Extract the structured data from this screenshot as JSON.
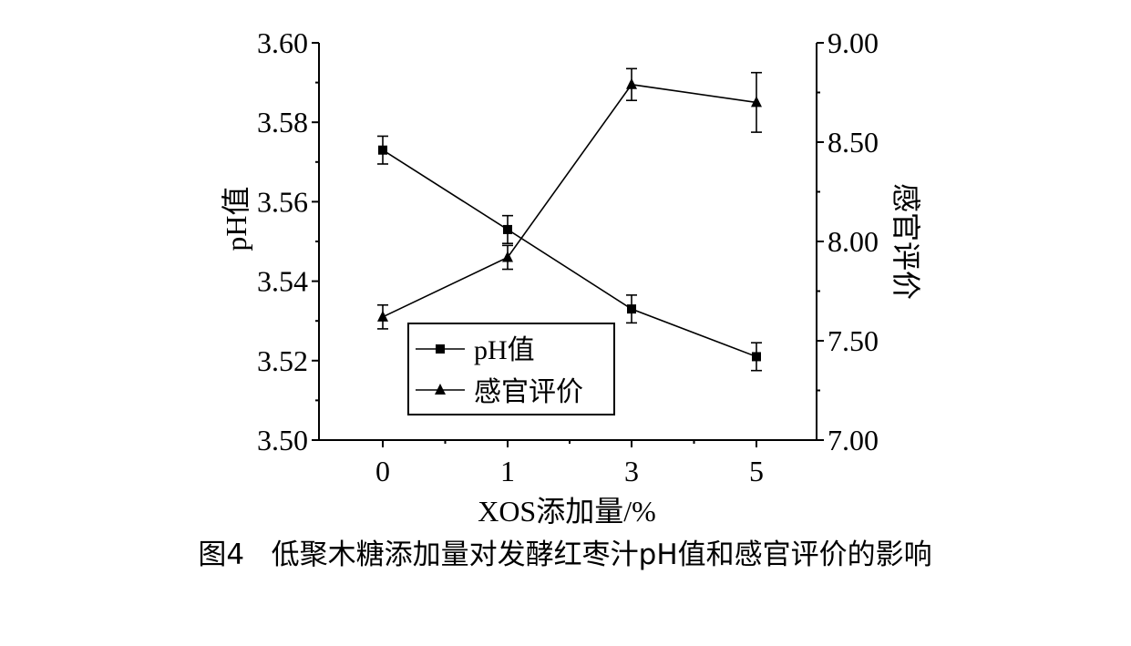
{
  "chart_data": {
    "type": "line",
    "xlabel": "XOS添加量/%",
    "ylabel_left": "pH值",
    "ylabel_right": "感官评价",
    "categories": [
      "0",
      "1",
      "3",
      "5"
    ],
    "ylim_left": [
      3.5,
      3.6
    ],
    "ylim_right": [
      7.0,
      9.0
    ],
    "yticks_left": [
      "3.50",
      "3.52",
      "3.54",
      "3.56",
      "3.58",
      "3.60"
    ],
    "yticks_right": [
      "7.00",
      "7.50",
      "8.00",
      "8.50",
      "9.00"
    ],
    "grid": false,
    "legend_position": "bottom-left",
    "series": [
      {
        "name": "pH值",
        "axis": "left",
        "marker": "square",
        "values": [
          3.573,
          3.553,
          3.533,
          3.521
        ],
        "errors": [
          0.0035,
          0.0035,
          0.0035,
          0.0035
        ]
      },
      {
        "name": "感官评价",
        "axis": "right",
        "marker": "triangle",
        "values": [
          7.62,
          7.92,
          8.79,
          8.7
        ],
        "errors": [
          0.06,
          0.06,
          0.08,
          0.15
        ]
      }
    ]
  },
  "caption": "图4   低聚木糖添加量对发酵红枣汁pH值和感官评价的影响"
}
